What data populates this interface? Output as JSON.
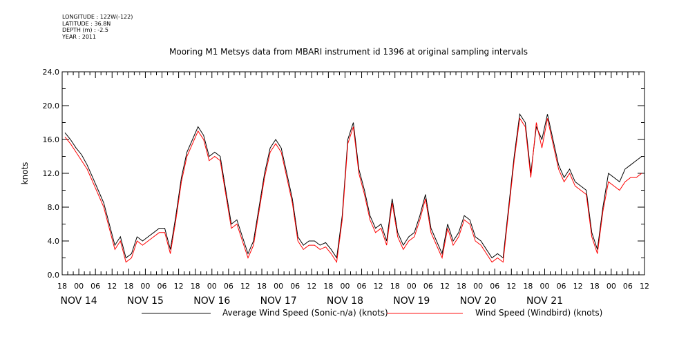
{
  "meta": {
    "longitude": "LONGITUDE : 122W(-122)",
    "latitude": "LATITUDE : 36.8N",
    "depth": "DEPTH (m) : -2.5",
    "year": "YEAR : 2011"
  },
  "chart_data": {
    "type": "line",
    "title": "Mooring M1 Metsys data from MBARI instrument id 1396 at original sampling intervals",
    "ylabel": "knots",
    "xlabel": "",
    "ylim": [
      0,
      24
    ],
    "xlim_hours": [
      -6,
      204
    ],
    "y_ticks": [
      "0.0",
      "4.0",
      "8.0",
      "12.0",
      "16.0",
      "20.0",
      "24.0"
    ],
    "x_tick_labels": [
      "18",
      "00",
      "06",
      "12",
      "18",
      "00",
      "06",
      "12",
      "18",
      "00",
      "06",
      "12",
      "18",
      "00",
      "06",
      "12",
      "18",
      "00",
      "06",
      "12",
      "18",
      "00",
      "06",
      "12",
      "18",
      "00",
      "06",
      "12",
      "18",
      "00",
      "06",
      "12",
      "18",
      "00",
      "06",
      "12"
    ],
    "date_labels": [
      {
        "label": "NOV 14",
        "hour": 0
      },
      {
        "label": "NOV 15",
        "hour": 24
      },
      {
        "label": "NOV 16",
        "hour": 48
      },
      {
        "label": "NOV 17",
        "hour": 72
      },
      {
        "label": "NOV 18",
        "hour": 96
      },
      {
        "label": "NOV 19",
        "hour": 120
      },
      {
        "label": "NOV 20",
        "hour": 144
      },
      {
        "label": "NOV 21",
        "hour": 168
      }
    ],
    "grid": false,
    "legend_position": "bottom",
    "x_hours": [
      -5,
      -3,
      -1,
      1,
      3,
      5,
      7,
      9,
      11,
      13,
      15,
      17,
      19,
      21,
      23,
      25,
      27,
      29,
      31,
      33,
      35,
      37,
      39,
      41,
      43,
      45,
      47,
      49,
      51,
      53,
      55,
      57,
      59,
      61,
      63,
      65,
      67,
      69,
      71,
      73,
      75,
      77,
      79,
      81,
      83,
      85,
      87,
      89,
      91,
      93,
      95,
      97,
      99,
      101,
      103,
      105,
      107,
      109,
      111,
      113,
      115,
      117,
      119,
      121,
      123,
      125,
      127,
      129,
      131,
      133,
      135,
      137,
      139,
      141,
      143,
      145,
      147,
      149,
      151,
      153,
      155,
      157,
      159,
      161,
      163,
      165,
      167,
      169,
      171,
      173,
      175,
      177,
      179,
      181,
      183,
      185,
      187,
      189,
      191,
      193,
      195,
      197,
      199,
      201,
      203
    ],
    "series": [
      {
        "name": "Average Wind Speed (Sonic-n/a) (knots)",
        "color": "#000000",
        "values": [
          16.8,
          16.0,
          15.0,
          14.2,
          13.0,
          11.5,
          10.0,
          8.5,
          6.0,
          3.5,
          4.5,
          2.0,
          2.5,
          4.5,
          4.0,
          4.5,
          5.0,
          5.5,
          5.5,
          3.0,
          7.0,
          11.5,
          14.5,
          16.0,
          17.5,
          16.5,
          14.0,
          14.5,
          14.0,
          10.0,
          6.0,
          6.5,
          4.5,
          2.5,
          4.0,
          8.0,
          12.0,
          15.0,
          16.0,
          15.0,
          12.0,
          9.0,
          4.5,
          3.5,
          4.0,
          4.0,
          3.5,
          3.8,
          3.0,
          2.0,
          7.0,
          16.0,
          18.0,
          12.5,
          10.0,
          7.0,
          5.5,
          6.0,
          4.0,
          9.0,
          5.0,
          3.5,
          4.5,
          5.0,
          7.0,
          9.5,
          5.5,
          4.0,
          2.5,
          6.0,
          4.0,
          5.0,
          7.0,
          6.5,
          4.5,
          4.0,
          3.0,
          2.0,
          2.5,
          2.0,
          8.0,
          14.0,
          19.0,
          18.0,
          12.0,
          17.5,
          16.0,
          19.0,
          16.0,
          13.0,
          11.5,
          12.5,
          11.0,
          10.5,
          10.0,
          5.0,
          3.0,
          8.0,
          12.0,
          11.5,
          11.0,
          12.5,
          13.0,
          13.5,
          14.0
        ]
      },
      {
        "name": "Wind Speed (Windbird) (knots)",
        "color": "#ff0000",
        "values": [
          16.3,
          15.5,
          14.5,
          13.5,
          12.5,
          11.0,
          9.5,
          8.0,
          5.5,
          3.0,
          4.0,
          1.5,
          2.0,
          4.0,
          3.5,
          4.0,
          4.5,
          5.0,
          5.0,
          2.5,
          6.5,
          11.0,
          14.0,
          15.5,
          17.0,
          16.0,
          13.5,
          14.0,
          13.5,
          9.5,
          5.5,
          6.0,
          4.0,
          2.0,
          3.5,
          7.5,
          11.5,
          14.5,
          15.5,
          14.5,
          11.5,
          8.5,
          4.0,
          3.0,
          3.5,
          3.5,
          3.0,
          3.3,
          2.5,
          1.5,
          6.5,
          15.5,
          17.5,
          12.0,
          9.5,
          6.5,
          5.0,
          5.5,
          3.5,
          8.5,
          4.5,
          3.0,
          4.0,
          4.5,
          6.5,
          9.0,
          5.0,
          3.5,
          2.0,
          5.5,
          3.5,
          4.5,
          6.5,
          6.0,
          4.0,
          3.5,
          2.5,
          1.5,
          2.0,
          1.5,
          7.5,
          13.5,
          18.5,
          17.5,
          11.5,
          18.0,
          15.0,
          18.5,
          15.5,
          12.5,
          11.0,
          12.0,
          10.5,
          10.0,
          9.5,
          4.5,
          2.5,
          7.5,
          11.0,
          10.5,
          10.0,
          11.0,
          11.5,
          11.5,
          12.0
        ]
      }
    ]
  }
}
